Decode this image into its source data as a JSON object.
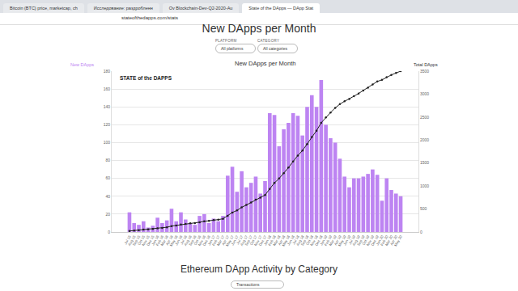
{
  "browser": {
    "tabs": [
      "Bitcoin (BTC) price, marketcap, ch",
      "Исследование: раздробленн",
      "Ov Blockchain-Dev-Q2-2020-Au",
      "State of the DApps — DApp Stat"
    ],
    "url": "stateofthedapps.com/stats"
  },
  "page": {
    "heading": "New DApps per Month",
    "filters": [
      {
        "label": "PLATFORM",
        "value": "All platforms"
      },
      {
        "label": "CATEGORY",
        "value": "All categories"
      }
    ],
    "section_heading": "Ethereum DApp Activity by Category",
    "section_select": "Transactions"
  },
  "chart_data": {
    "type": "bar",
    "title": "New DApps per Month",
    "logo": "STATE of the DAPPS",
    "categories": [
      "Jul 15",
      "Aug 15",
      "Sep 15",
      "Oct 15",
      "Nov 15",
      "Dec 15",
      "Jan 16",
      "Feb 16",
      "Mar 16",
      "Apr 16",
      "May 16",
      "Jun 16",
      "Jul 16",
      "Aug 16",
      "Sep 16",
      "Oct 16",
      "Nov 16",
      "Dec 16",
      "Jan 17",
      "Feb 17",
      "Mar 17",
      "Apr 17",
      "May 17",
      "Jun 17",
      "Jul 17",
      "Aug 17",
      "Sep 17",
      "Oct 17",
      "Nov 17",
      "Dec 17",
      "Jan 18",
      "Feb 18",
      "Mar 18",
      "Apr 18",
      "May 18",
      "Jun 18",
      "Jul 18",
      "Aug 18",
      "Sep 18",
      "Oct 18",
      "Nov 18",
      "Dec 18",
      "Jan 19",
      "Feb 19",
      "Mar 19",
      "Apr 19",
      "May 19",
      "Jun 19",
      "Jul 19",
      "Aug 19",
      "Sep 19",
      "Oct 19",
      "Nov 19",
      "Dec 19",
      "Jan 20",
      "Feb 20",
      "Mar 20",
      "Apr 20",
      "May 20"
    ],
    "series": [
      {
        "name": "New DApps",
        "type": "bar",
        "color": "#bd84f2",
        "values": [
          22,
          10,
          8,
          12,
          5,
          7,
          16,
          10,
          13,
          26,
          12,
          22,
          14,
          10,
          8,
          18,
          20,
          10,
          15,
          12,
          18,
          63,
          73,
          45,
          68,
          50,
          55,
          62,
          43,
          57,
          133,
          131,
          96,
          115,
          122,
          133,
          130,
          108,
          140,
          153,
          140,
          170,
          120,
          105,
          100,
          82,
          62,
          50,
          60,
          60,
          62,
          65,
          70,
          64,
          35,
          60,
          47,
          43,
          40
        ]
      },
      {
        "name": "Total DApps",
        "type": "line",
        "color": "#222222",
        "marker": "circle",
        "line_style": "solid",
        "axis": "y2",
        "values": [
          22,
          32,
          40,
          52,
          57,
          64,
          80,
          90,
          103,
          129,
          141,
          163,
          177,
          187,
          195,
          213,
          233,
          243,
          258,
          270,
          288,
          351,
          424,
          469,
          537,
          587,
          642,
          704,
          747,
          804,
          937,
          1068,
          1164,
          1279,
          1401,
          1534,
          1664,
          1772,
          1912,
          2065,
          2205,
          2375,
          2495,
          2600,
          2700,
          2782,
          2844,
          2894,
          2954,
          3014,
          3076,
          3141,
          3211,
          3275,
          3310,
          3370,
          3417,
          3460,
          3500
        ]
      }
    ],
    "ylim": [
      0,
      180
    ],
    "yticks": [
      0,
      20,
      40,
      60,
      80,
      100,
      120,
      140,
      160,
      180
    ],
    "y2lim": [
      0,
      3500
    ],
    "y2ticks": [
      0,
      500,
      1000,
      1500,
      2000,
      2500,
      3000,
      3500
    ],
    "grid": true
  }
}
